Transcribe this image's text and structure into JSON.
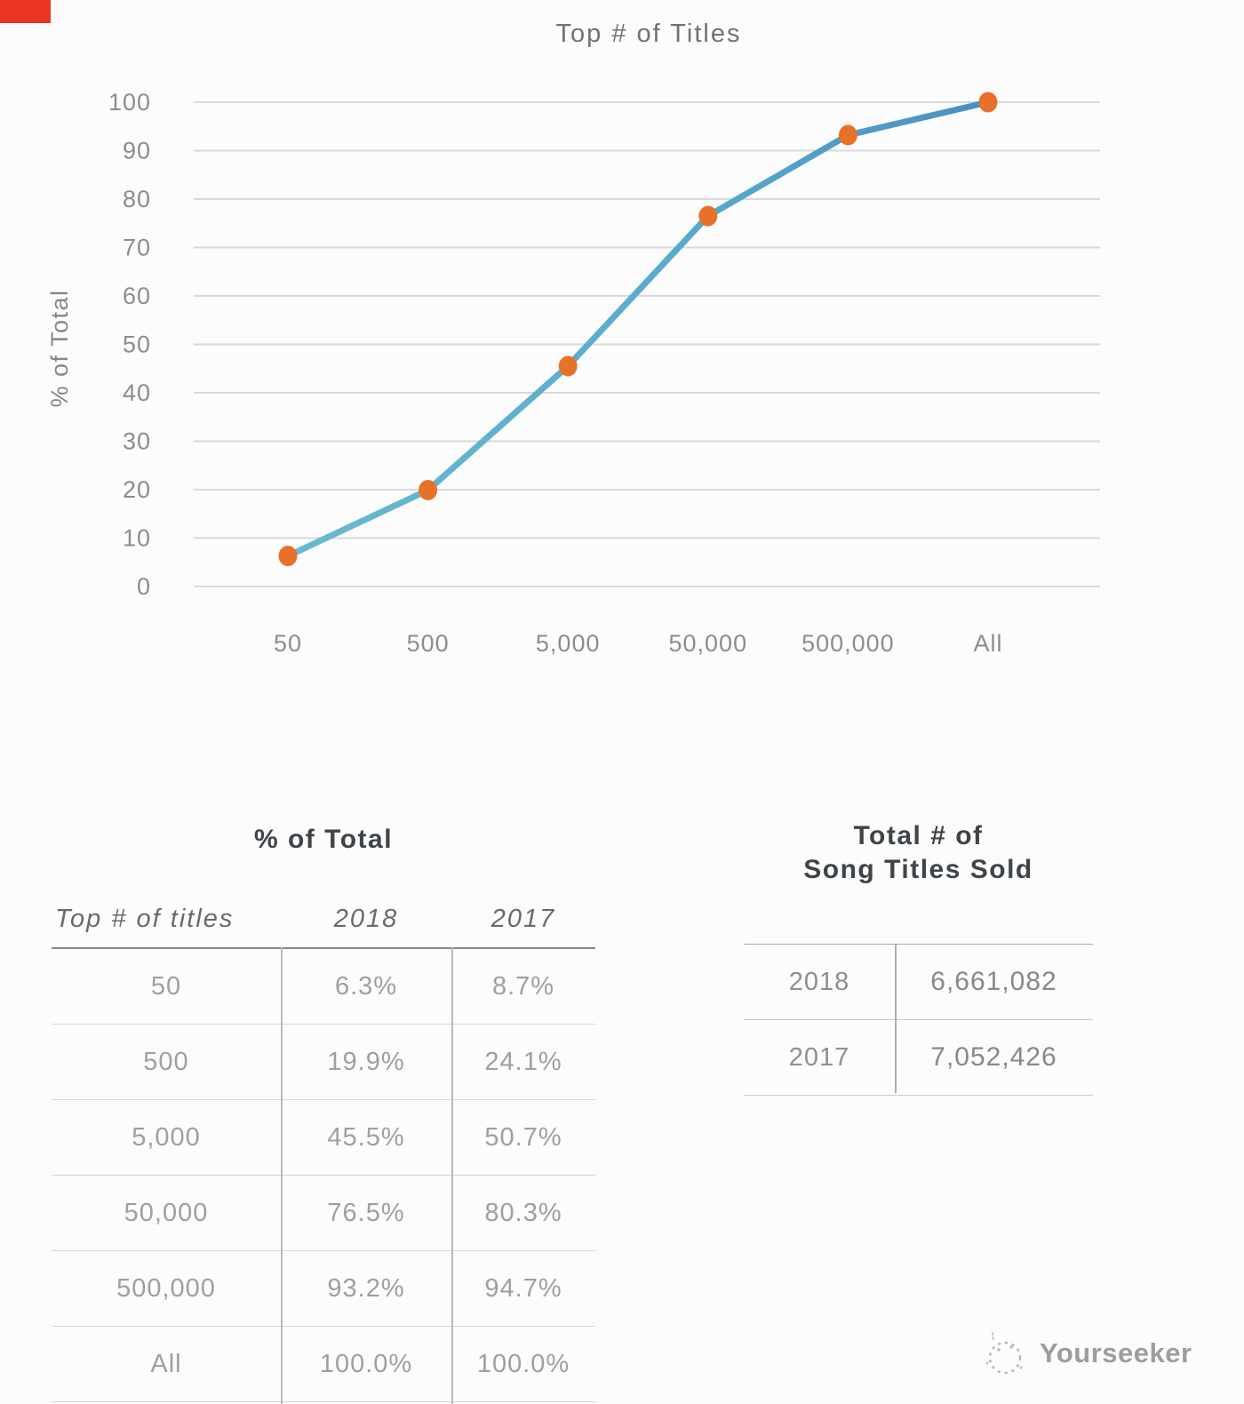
{
  "page": {
    "background": "#fcfcfc",
    "corner_marker_color": "#ec3423"
  },
  "chart_data": {
    "type": "line",
    "title": "Top # of Titles",
    "ylabel": "% of Total",
    "xlabel": "",
    "categories": [
      "50",
      "500",
      "5,000",
      "50,000",
      "500,000",
      "All"
    ],
    "series": [
      {
        "name": "2018",
        "values": [
          6.3,
          19.9,
          45.5,
          76.5,
          93.2,
          100.0
        ]
      }
    ],
    "ylim": [
      0,
      100
    ],
    "yticks": [
      0,
      10,
      20,
      30,
      40,
      50,
      60,
      70,
      80,
      90,
      100
    ],
    "grid": true,
    "legend": false,
    "colors": {
      "line_start": "#68bace",
      "line_end": "#4a90c3",
      "point": "#e87129",
      "gridline": "#d8d9da",
      "tick_label": "#888d91",
      "title": "#6e7377",
      "axis_title": "#82878b"
    }
  },
  "left_table": {
    "title": "% of Total",
    "header": [
      "Top # of titles",
      "2018",
      "2017"
    ],
    "rows": [
      [
        "50",
        "6.3%",
        "8.7%"
      ],
      [
        "500",
        "19.9%",
        "24.1%"
      ],
      [
        "5,000",
        "45.5%",
        "50.7%"
      ],
      [
        "50,000",
        "76.5%",
        "80.3%"
      ],
      [
        "500,000",
        "93.2%",
        "94.7%"
      ],
      [
        "All",
        "100.0%",
        "100.0%"
      ]
    ]
  },
  "right_table": {
    "title_line1": "Total # of",
    "title_line2": "Song Titles Sold",
    "rows": [
      [
        "2018",
        "6,661,082"
      ],
      [
        "2017",
        "7,052,426"
      ]
    ]
  },
  "footer": {
    "brand": "Yourseeker",
    "icon": "sketch-circle-icon"
  }
}
